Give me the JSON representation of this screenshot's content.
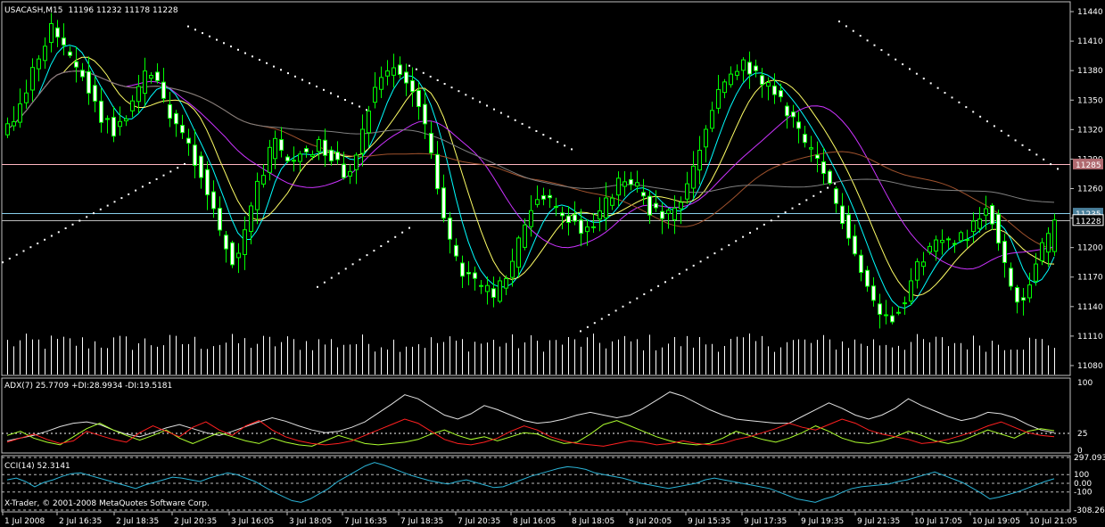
{
  "window": {
    "symbol": "USACASH,M15",
    "ohlc": "11196 11232 11178 11228",
    "copyright": "X-Trader, © 2001-2008 MetaQuotes Software Corp."
  },
  "colors": {
    "background": "#000000",
    "frame": "#c0c0c0",
    "text": "#ffffff",
    "bull_candle": "#00ff00",
    "bear_candle": "#ffffff",
    "ma_fast": "#00ffff",
    "ma_mid": "#ffff66",
    "ma_slow": "#cc33ff",
    "ma_long": "#a0522d",
    "ma_longest": "#808080",
    "parabolic_sar": "#ffffff",
    "resistance_line": "#ffb6c1",
    "current_price_line": "#87ceeb",
    "adx_line": "#e0e0e0",
    "di_plus": "#adff2f",
    "di_minus": "#ff2020",
    "cci_line": "#2bb3d6"
  },
  "chart_data": [
    {
      "type": "candlestick",
      "panel": "main",
      "title": "USACASH,M15",
      "header_values": {
        "open": 11196,
        "high": 11232,
        "low": 11178,
        "close": 11228
      },
      "ylim": [
        11070,
        11450
      ],
      "y_ticks": [
        "11440",
        "11410",
        "11380",
        "11350",
        "11320",
        "11290",
        "11260",
        "11230",
        "11200",
        "11170",
        "11140",
        "11110",
        "11080"
      ],
      "price_tags": [
        {
          "label": "11285",
          "value": 11285,
          "style": "resistance"
        },
        {
          "label": "11235",
          "value": 11235,
          "style": "level"
        },
        {
          "label": "11228",
          "value": 11228,
          "style": "current"
        }
      ],
      "horizontal_lines": [
        {
          "value": 11285,
          "color": "#ffb6c1"
        },
        {
          "value": 11235,
          "color": "#87ceeb"
        },
        {
          "value": 11228,
          "color": "#bbbbbb"
        }
      ],
      "x_ticks": [
        "1 Jul 2008",
        "2 Jul 16:35",
        "2 Jul 18:35",
        "2 Jul 20:35",
        "3 Jul 16:05",
        "3 Jul 18:05",
        "7 Jul 16:35",
        "7 Jul 18:35",
        "7 Jul 20:35",
        "8 Jul 16:05",
        "8 Jul 18:05",
        "8 Jul 20:05",
        "9 Jul 15:35",
        "9 Jul 17:35",
        "9 Jul 19:35",
        "9 Jul 21:35",
        "10 Jul 17:05",
        "10 Jul 19:05",
        "10 Jul 21:05"
      ],
      "close_path": [
        11320,
        11330,
        11345,
        11360,
        11380,
        11395,
        11410,
        11425,
        11415,
        11400,
        11390,
        11385,
        11375,
        11360,
        11345,
        11330,
        11330,
        11320,
        11325,
        11335,
        11345,
        11360,
        11375,
        11380,
        11370,
        11350,
        11335,
        11325,
        11315,
        11305,
        11290,
        11275,
        11255,
        11240,
        11215,
        11205,
        11185,
        11190,
        11215,
        11240,
        11265,
        11280,
        11295,
        11305,
        11295,
        11285,
        11290,
        11300,
        11295,
        11300,
        11305,
        11300,
        11295,
        11285,
        11275,
        11280,
        11300,
        11320,
        11345,
        11365,
        11375,
        11380,
        11382,
        11378,
        11370,
        11360,
        11345,
        11320,
        11295,
        11265,
        11235,
        11205,
        11185,
        11175,
        11170,
        11165,
        11160,
        11155,
        11150,
        11160,
        11170,
        11185,
        11205,
        11225,
        11240,
        11250,
        11250,
        11245,
        11240,
        11235,
        11230,
        11225,
        11220,
        11220,
        11225,
        11235,
        11245,
        11255,
        11265,
        11270,
        11265,
        11260,
        11250,
        11240,
        11235,
        11230,
        11232,
        11238,
        11248,
        11262,
        11280,
        11300,
        11320,
        11340,
        11355,
        11365,
        11375,
        11380,
        11385,
        11382,
        11376,
        11368,
        11362,
        11355,
        11348,
        11340,
        11330,
        11318,
        11305,
        11295,
        11285,
        11275,
        11260,
        11245,
        11230,
        11215,
        11195,
        11175,
        11160,
        11145,
        11135,
        11130,
        11130,
        11140,
        11150,
        11165,
        11180,
        11192,
        11198,
        11203,
        11205,
        11208,
        11210,
        11212,
        11214,
        11222,
        11235,
        11245,
        11230,
        11205,
        11180,
        11160,
        11145,
        11150,
        11165,
        11185,
        11200,
        11215,
        11228
      ],
      "sar_segments": [
        {
          "x_start": 2,
          "x_end": 206,
          "y_start": 11185,
          "y_end": 11285
        },
        {
          "x_start": 210,
          "x_end": 410,
          "y_start": 11425,
          "y_end": 11340
        },
        {
          "x_start": 355,
          "x_end": 458,
          "y_start": 11160,
          "y_end": 11220
        },
        {
          "x_start": 458,
          "x_end": 640,
          "y_start": 11385,
          "y_end": 11300
        },
        {
          "x_start": 650,
          "x_end": 935,
          "y_start": 11115,
          "y_end": 11265
        },
        {
          "x_start": 940,
          "x_end": 1185,
          "y_start": 11430,
          "y_end": 11280
        }
      ],
      "volume": {
        "min": 0,
        "max": 100
      }
    },
    {
      "type": "line",
      "panel": "adx",
      "title": "ADX(7) 25.7709 +DI:28.9934 -DI:19.5181",
      "series": [
        {
          "name": "ADX(7)",
          "last": 25.7709,
          "values": [
            14,
            18,
            22,
            28,
            35,
            40,
            42,
            38,
            30,
            24,
            20,
            26,
            33,
            38,
            32,
            26,
            22,
            28,
            35,
            42,
            48,
            43,
            36,
            30,
            26,
            28,
            34,
            42,
            55,
            68,
            82,
            76,
            64,
            52,
            46,
            54,
            66,
            60,
            52,
            44,
            40,
            42,
            46,
            52,
            56,
            52,
            48,
            52,
            62,
            74,
            86,
            80,
            70,
            60,
            52,
            46,
            44,
            42,
            40,
            40,
            50,
            60,
            70,
            62,
            52,
            46,
            52,
            62,
            76,
            66,
            58,
            50,
            44,
            48,
            56,
            54,
            48,
            38,
            30,
            26
          ]
        },
        {
          "name": "+DI",
          "last": 28.9934,
          "values": [
            22,
            28,
            18,
            12,
            8,
            20,
            32,
            40,
            30,
            22,
            15,
            22,
            30,
            18,
            10,
            18,
            26,
            20,
            14,
            10,
            18,
            12,
            8,
            6,
            14,
            22,
            16,
            10,
            8,
            10,
            12,
            16,
            24,
            30,
            22,
            16,
            20,
            14,
            20,
            26,
            24,
            16,
            10,
            12,
            24,
            38,
            44,
            36,
            28,
            20,
            14,
            10,
            8,
            10,
            18,
            28,
            22,
            16,
            12,
            18,
            26,
            36,
            28,
            18,
            12,
            10,
            14,
            20,
            28,
            22,
            14,
            10,
            14,
            22,
            30,
            24,
            18,
            28,
            32,
            29
          ]
        },
        {
          "name": "-DI",
          "last": 19.5181,
          "values": [
            12,
            18,
            24,
            16,
            10,
            14,
            28,
            22,
            16,
            12,
            26,
            36,
            28,
            20,
            34,
            42,
            30,
            22,
            36,
            44,
            30,
            20,
            14,
            10,
            8,
            10,
            14,
            22,
            30,
            38,
            46,
            40,
            28,
            16,
            10,
            8,
            12,
            18,
            28,
            36,
            30,
            20,
            14,
            10,
            8,
            6,
            10,
            14,
            12,
            8,
            10,
            14,
            10,
            8,
            10,
            16,
            20,
            26,
            32,
            40,
            34,
            30,
            38,
            46,
            40,
            30,
            24,
            20,
            16,
            10,
            12,
            16,
            22,
            28,
            36,
            42,
            34,
            26,
            22,
            20
          ]
        }
      ],
      "levels": [
        {
          "value": 25,
          "style": "dashed",
          "color": "#ffffff"
        }
      ],
      "ylim": [
        0,
        100
      ],
      "y_ticks": [
        "100",
        "25",
        "0"
      ]
    },
    {
      "type": "line",
      "panel": "cci",
      "title": "CCI(14) 52.3141",
      "series": [
        {
          "name": "CCI(14)",
          "last": 52.3141,
          "values": [
            40,
            60,
            20,
            -40,
            10,
            40,
            80,
            110,
            120,
            90,
            60,
            30,
            0,
            -30,
            -60,
            -20,
            10,
            40,
            70,
            60,
            40,
            20,
            60,
            90,
            120,
            100,
            60,
            20,
            -40,
            -100,
            -150,
            -200,
            -220,
            -180,
            -120,
            -60,
            20,
            80,
            140,
            200,
            240,
            210,
            170,
            130,
            90,
            60,
            30,
            10,
            -10,
            20,
            40,
            10,
            -20,
            -50,
            -40,
            0,
            40,
            80,
            110,
            140,
            170,
            190,
            180,
            160,
            120,
            100,
            80,
            60,
            30,
            0,
            -20,
            -40,
            -60,
            -40,
            -20,
            0,
            40,
            60,
            40,
            20,
            0,
            -20,
            -40,
            -60,
            -100,
            -140,
            -180,
            -200,
            -220,
            -180,
            -150,
            -100,
            -60,
            -40,
            -30,
            -20,
            -10,
            20,
            40,
            70,
            100,
            130,
            90,
            50,
            10,
            -50,
            -110,
            -180,
            -160,
            -130,
            -100,
            -60,
            -20,
            20,
            52
          ]
        }
      ],
      "levels": [
        {
          "value": 100,
          "style": "dashed"
        },
        {
          "value": 0,
          "style": "dashed"
        },
        {
          "value": -100,
          "style": "dashed"
        }
      ],
      "ylim": [
        -308.262,
        297.093
      ],
      "y_ticks": [
        "297.093",
        "100",
        "0.00",
        "-100",
        "-308.262"
      ]
    }
  ]
}
